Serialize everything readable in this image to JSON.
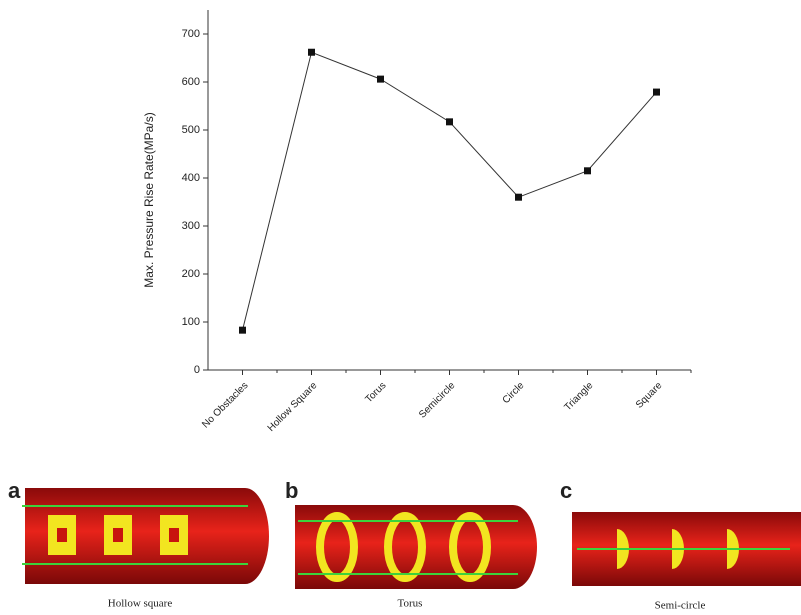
{
  "chart_data": {
    "type": "line",
    "y_label": "Max. Pressure Rise Rate(MPa/s)",
    "categories": [
      "No Obstacles",
      "Hollow Square",
      "Torus",
      "Semicircle",
      "Circle",
      "Triangle",
      "Square"
    ],
    "values": [
      83,
      662,
      606,
      517,
      360,
      415,
      579
    ],
    "color": "#333333",
    "ylim": [
      0,
      750
    ],
    "yticks": [
      0,
      100,
      200,
      300,
      400,
      500,
      600,
      700
    ]
  },
  "panels": [
    {
      "letter": "a",
      "caption": "Hollow square"
    },
    {
      "letter": "b",
      "caption": "Torus"
    },
    {
      "letter": "c",
      "caption": "Semi-circle"
    }
  ]
}
